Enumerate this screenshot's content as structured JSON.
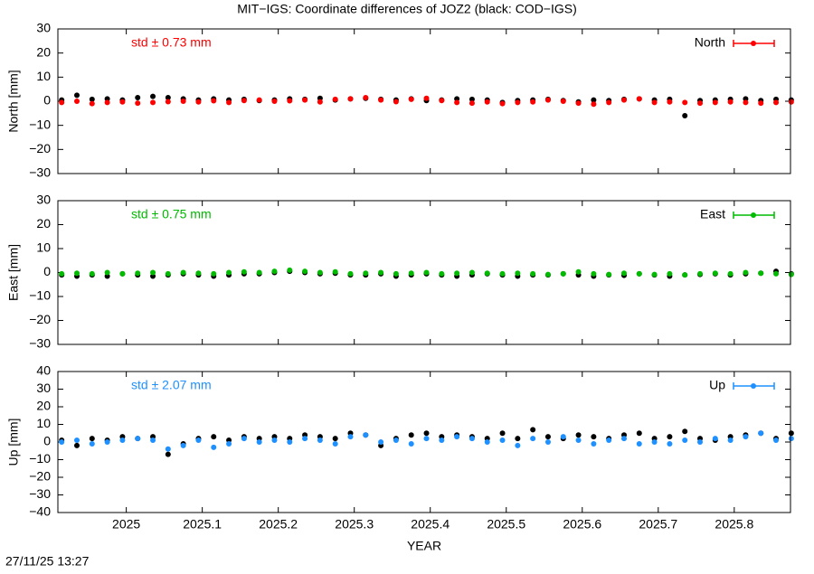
{
  "title": "MIT−IGS: Coordinate differences of JOZ2 (black: COD−IGS)",
  "timestamp": "27/11/25 13:27",
  "chart_data": [
    {
      "type": "scatter",
      "ylabel": "North [mm]",
      "annotation": "std ± 0.73 mm",
      "annotation_color": "#ff0000",
      "legend": "upper right",
      "xtick_labels": false,
      "x": [
        2024.915,
        2024.935,
        2024.955,
        2024.975,
        2024.995,
        2025.015,
        2025.035,
        2025.055,
        2025.075,
        2025.095,
        2025.115,
        2025.135,
        2025.155,
        2025.175,
        2025.195,
        2025.215,
        2025.235,
        2025.255,
        2025.275,
        2025.295,
        2025.315,
        2025.335,
        2025.355,
        2025.375,
        2025.395,
        2025.415,
        2025.435,
        2025.455,
        2025.475,
        2025.495,
        2025.515,
        2025.535,
        2025.555,
        2025.575,
        2025.595,
        2025.615,
        2025.635,
        2025.655,
        2025.675,
        2025.695,
        2025.715,
        2025.735,
        2025.755,
        2025.775,
        2025.795,
        2025.815,
        2025.835,
        2025.855,
        2025.875
      ],
      "xlim": [
        2024.91,
        2025.874
      ],
      "xticks": [
        2025,
        2025.1,
        2025.2,
        2025.3,
        2025.4,
        2025.5,
        2025.6,
        2025.7,
        2025.8
      ],
      "ylim": [
        -30,
        30
      ],
      "yticks": [
        {
          "value": -30,
          "label": "−30"
        },
        {
          "value": -20,
          "label": "−20"
        },
        {
          "value": -10,
          "label": "−10"
        },
        0,
        10,
        20,
        30
      ],
      "series": [
        {
          "color": "#000000",
          "values": [
            0.5,
            2.5,
            0.8,
            1,
            0.5,
            1.5,
            2,
            1.5,
            1,
            0.5,
            1,
            0.5,
            0.8,
            0.3,
            0.5,
            1,
            0.8,
            1.2,
            0.5,
            1,
            1.2,
            0.8,
            0.5,
            1,
            0.3,
            0.5,
            1,
            0.8,
            0.5,
            -0.5,
            0.3,
            0.5,
            0.8,
            0.3,
            -0.3,
            0.5,
            0.3,
            0.8,
            1,
            0.5,
            0.8,
            -6,
            0.3,
            0.5,
            0.8,
            1,
            0.3,
            0.8,
            0.5
          ]
        },
        {
          "name": "North",
          "color": "#ff0000",
          "values": [
            -0.5,
            0,
            -1,
            -0.5,
            -0.3,
            -0.8,
            -0.5,
            -0.2,
            0,
            -0.3,
            0.2,
            -0.5,
            0.3,
            0.5,
            0,
            0.2,
            0.5,
            -0.3,
            0.8,
            1,
            1.5,
            0.5,
            -0.2,
            0.8,
            1.2,
            0.3,
            -0.5,
            -0.8,
            -0.3,
            -1,
            -0.5,
            -0.3,
            0.5,
            0,
            -0.8,
            -1.2,
            -0.5,
            0.5,
            1,
            -0.5,
            -0.3,
            -0.5,
            -0.8,
            -0.5,
            -0.3,
            -0.5,
            -0.8,
            -0.5,
            -0.3
          ]
        }
      ]
    },
    {
      "type": "scatter",
      "ylabel": "East [mm]",
      "annotation": "std ± 0.75 mm",
      "annotation_color": "#00bb00",
      "legend": "upper right",
      "xtick_labels": false,
      "x": [
        2024.915,
        2024.935,
        2024.955,
        2024.975,
        2024.995,
        2025.015,
        2025.035,
        2025.055,
        2025.075,
        2025.095,
        2025.115,
        2025.135,
        2025.155,
        2025.175,
        2025.195,
        2025.215,
        2025.235,
        2025.255,
        2025.275,
        2025.295,
        2025.315,
        2025.335,
        2025.355,
        2025.375,
        2025.395,
        2025.415,
        2025.435,
        2025.455,
        2025.475,
        2025.495,
        2025.515,
        2025.535,
        2025.555,
        2025.575,
        2025.595,
        2025.615,
        2025.635,
        2025.655,
        2025.675,
        2025.695,
        2025.715,
        2025.735,
        2025.755,
        2025.775,
        2025.795,
        2025.815,
        2025.835,
        2025.855,
        2025.875
      ],
      "xlim": [
        2024.91,
        2025.874
      ],
      "xticks": [
        2025,
        2025.1,
        2025.2,
        2025.3,
        2025.4,
        2025.5,
        2025.6,
        2025.7,
        2025.8
      ],
      "ylim": [
        -30,
        30
      ],
      "yticks": [
        {
          "value": -30,
          "label": "−30"
        },
        {
          "value": -20,
          "label": "−20"
        },
        {
          "value": -10,
          "label": "−10"
        },
        0,
        10,
        20,
        30
      ],
      "series": [
        {
          "color": "#000000",
          "values": [
            -1,
            -1.5,
            -1,
            -1.5,
            -0.5,
            -1,
            -1.5,
            -1,
            -0.5,
            -1,
            -1.5,
            -1,
            -0.5,
            -0.5,
            0,
            0.5,
            0,
            -0.5,
            -0.3,
            -1,
            -1,
            -0.5,
            -1.5,
            -1,
            -0.5,
            -1,
            -1.5,
            -1,
            -0.5,
            -1,
            -1.5,
            -1,
            -1,
            -0.5,
            -1,
            -1.5,
            -1,
            -1.2,
            -0.5,
            -1,
            -1.5,
            -1,
            -0.8,
            -0.5,
            -1,
            -0.5,
            -0.3,
            0.5,
            -0.5
          ]
        },
        {
          "name": "East",
          "color": "#00bb00",
          "values": [
            -0.5,
            -0.3,
            -0.5,
            0,
            -0.5,
            -0.3,
            0,
            -0.5,
            0,
            -0.3,
            -0.5,
            0,
            0.3,
            0,
            0.5,
            1,
            0.5,
            0,
            0.3,
            -0.5,
            -0.3,
            0,
            -0.5,
            -0.3,
            0,
            -0.5,
            -0.3,
            0,
            -0.3,
            -0.5,
            -0.3,
            -0.5,
            -0.8,
            -0.5,
            0.3,
            -0.5,
            -0.8,
            -0.3,
            -0.5,
            -0.8,
            -0.5,
            -1,
            -0.5,
            -0.3,
            -0.5,
            0,
            -0.3,
            -0.5,
            -0.8
          ]
        }
      ]
    },
    {
      "type": "scatter",
      "ylabel": "Up [mm]",
      "xlabel": "YEAR",
      "annotation": "std ± 2.07 mm",
      "annotation_color": "#1e90ff",
      "legend": "upper right",
      "xtick_labels": true,
      "x": [
        2024.915,
        2024.935,
        2024.955,
        2024.975,
        2024.995,
        2025.015,
        2025.035,
        2025.055,
        2025.075,
        2025.095,
        2025.115,
        2025.135,
        2025.155,
        2025.175,
        2025.195,
        2025.215,
        2025.235,
        2025.255,
        2025.275,
        2025.295,
        2025.315,
        2025.335,
        2025.355,
        2025.375,
        2025.395,
        2025.415,
        2025.435,
        2025.455,
        2025.475,
        2025.495,
        2025.515,
        2025.535,
        2025.555,
        2025.575,
        2025.595,
        2025.615,
        2025.635,
        2025.655,
        2025.675,
        2025.695,
        2025.715,
        2025.735,
        2025.755,
        2025.775,
        2025.795,
        2025.815,
        2025.835,
        2025.855,
        2025.875
      ],
      "xlim": [
        2024.91,
        2025.874
      ],
      "xticks": [
        2025,
        2025.1,
        2025.2,
        2025.3,
        2025.4,
        2025.5,
        2025.6,
        2025.7,
        2025.8
      ],
      "ylim": [
        -40,
        40
      ],
      "yticks": [
        {
          "value": -40,
          "label": "−40"
        },
        {
          "value": -30,
          "label": "−30"
        },
        {
          "value": -20,
          "label": "−20"
        },
        {
          "value": -10,
          "label": "−10"
        },
        0,
        10,
        20,
        30,
        40
      ],
      "series": [
        {
          "color": "#000000",
          "values": [
            1,
            -2,
            2,
            1,
            3,
            2,
            3,
            -7,
            -1,
            2,
            3,
            1,
            3,
            2,
            3,
            2,
            4,
            3,
            2,
            5,
            4,
            -2,
            2,
            4,
            5,
            3,
            4,
            3,
            2,
            5,
            2,
            7,
            3,
            2,
            4,
            3,
            2,
            4,
            5,
            2,
            3,
            6,
            2,
            1,
            3,
            4,
            5,
            2,
            5
          ]
        },
        {
          "name": "Up",
          "color": "#1e90ff",
          "values": [
            0,
            1,
            -1,
            0,
            1,
            2,
            1,
            -4,
            -2,
            1,
            -3,
            -1,
            2,
            0,
            1,
            0,
            2,
            1,
            -1,
            3,
            4,
            0,
            1,
            -1,
            2,
            1,
            3,
            2,
            0,
            1,
            -2,
            2,
            0,
            3,
            1,
            -1,
            1,
            2,
            -1,
            0,
            -1,
            1,
            0,
            2,
            1,
            3,
            5,
            1,
            2
          ]
        }
      ]
    }
  ]
}
